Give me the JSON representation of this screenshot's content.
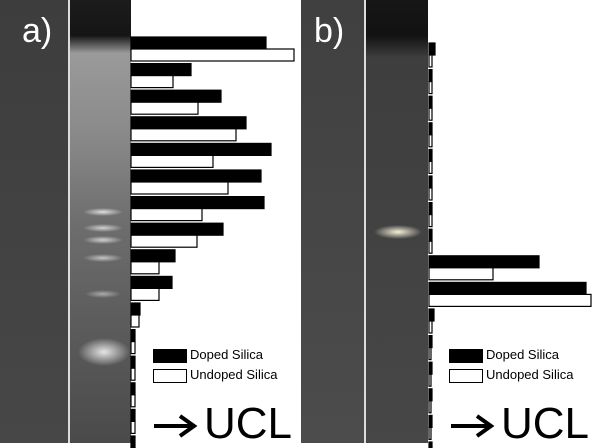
{
  "colors": {
    "gel_background": "#4a4a4a",
    "doped": "#000000",
    "undoped": "#ffffff",
    "lane_divider": "#dcdcdc"
  },
  "panels": [
    {
      "id": "a",
      "label": "a)"
    },
    {
      "id": "b",
      "label": "b)"
    }
  ],
  "legend": {
    "doped": "Doped Silica",
    "undoped": "Undoped Silica"
  },
  "axis_label": "UCL",
  "chart_data": [
    {
      "panel": "a)",
      "type": "bar",
      "orientation": "horizontal",
      "fractions": 16,
      "series": [
        {
          "name": "Doped Silica",
          "values": [
            135,
            60,
            90,
            115,
            140,
            130,
            133,
            92,
            44,
            41,
            9,
            4,
            4,
            4,
            4,
            4
          ]
        },
        {
          "name": "Undoped Silica",
          "values": [
            163,
            42,
            67,
            105,
            82,
            97,
            71,
            66,
            28,
            28,
            8,
            4,
            4,
            4,
            4,
            4
          ]
        }
      ]
    },
    {
      "panel": "b)",
      "type": "bar",
      "orientation": "horizontal",
      "fractions": 16,
      "series": [
        {
          "name": "Doped Silica",
          "values": [
            6,
            3,
            3,
            3,
            3,
            3,
            3,
            3,
            110,
            157,
            5,
            3,
            3,
            3,
            3,
            3
          ]
        },
        {
          "name": "Undoped Silica",
          "values": [
            3,
            3,
            3,
            3,
            3,
            3,
            3,
            3,
            64,
            162,
            3,
            2,
            2,
            2,
            2,
            2
          ]
        }
      ]
    }
  ]
}
